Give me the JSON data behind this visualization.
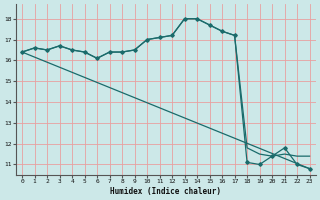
{
  "xlabel": "Humidex (Indice chaleur)",
  "bg_color": "#cce8e8",
  "grid_color": "#e8a0a0",
  "line_color": "#1a6b6b",
  "xlim": [
    -0.5,
    23.5
  ],
  "ylim": [
    10.5,
    18.7
  ],
  "yticks": [
    11,
    12,
    13,
    14,
    15,
    16,
    17,
    18
  ],
  "xticks": [
    0,
    1,
    2,
    3,
    4,
    5,
    6,
    7,
    8,
    9,
    10,
    11,
    12,
    13,
    14,
    15,
    16,
    17,
    18,
    19,
    20,
    21,
    22,
    23
  ],
  "line1_x": [
    0,
    1,
    2,
    3,
    4,
    5,
    6,
    7,
    8,
    9,
    10,
    11,
    12,
    13,
    14,
    15,
    16,
    17,
    18,
    19,
    20,
    21,
    22,
    23
  ],
  "line1_y": [
    16.4,
    16.6,
    16.5,
    16.7,
    16.5,
    16.4,
    16.1,
    16.4,
    16.4,
    16.5,
    17.0,
    17.1,
    17.2,
    18.0,
    18.0,
    17.7,
    17.4,
    17.2,
    11.1,
    11.0,
    11.4,
    11.8,
    11.0,
    10.8
  ],
  "line2_x": [
    0,
    1,
    2,
    3,
    4,
    5,
    6,
    7,
    8,
    9,
    10,
    11,
    12,
    13,
    14,
    15,
    16,
    17,
    18,
    19,
    20,
    21,
    22,
    23
  ],
  "line2_y": [
    16.4,
    16.6,
    16.5,
    16.7,
    16.5,
    16.4,
    16.1,
    16.4,
    16.4,
    16.5,
    17.0,
    17.1,
    17.2,
    18.0,
    18.0,
    17.7,
    17.4,
    17.2,
    11.8,
    11.5,
    11.4,
    11.5,
    11.4,
    11.4
  ],
  "line3_x": [
    0,
    23
  ],
  "line3_y": [
    16.4,
    10.8
  ]
}
